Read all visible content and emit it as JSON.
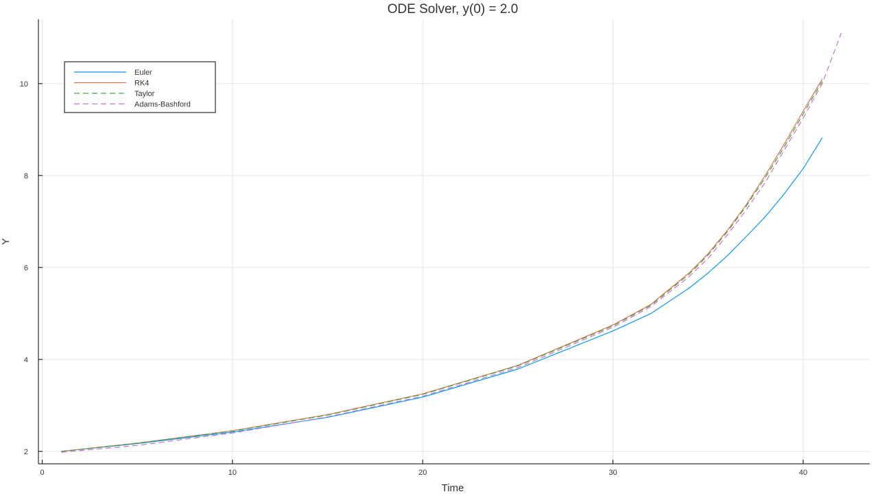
{
  "chart_data": {
    "type": "line",
    "title": "ODE Solver, y(0) = 2.0",
    "xlabel": "Time",
    "ylabel": "Y",
    "xlim": [
      -0.2,
      43.5
    ],
    "ylim": [
      1.73,
      11.4
    ],
    "xticks": [
      0,
      10,
      20,
      30,
      40
    ],
    "yticks": [
      2,
      4,
      6,
      8,
      10
    ],
    "grid": true,
    "legend_position": "top-left",
    "series": [
      {
        "name": "Euler",
        "color": "#009AFA",
        "dash": "solid",
        "x": [
          1,
          5,
          10,
          15,
          20,
          25,
          30,
          32,
          34,
          35,
          36,
          37,
          38,
          39,
          40,
          41
        ],
        "y": [
          2.0,
          2.17,
          2.42,
          2.74,
          3.18,
          3.79,
          4.62,
          5.0,
          5.55,
          5.88,
          6.25,
          6.67,
          7.1,
          7.6,
          8.15,
          8.82
        ]
      },
      {
        "name": "RK4",
        "color": "#E36F47",
        "dash": "solid",
        "x": [
          1,
          5,
          10,
          15,
          20,
          25,
          30,
          32,
          34,
          35,
          36,
          37,
          38,
          39,
          40,
          41
        ],
        "y": [
          2.0,
          2.18,
          2.45,
          2.8,
          3.25,
          3.87,
          4.75,
          5.2,
          5.88,
          6.3,
          6.8,
          7.36,
          8.0,
          8.68,
          9.4,
          10.1
        ]
      },
      {
        "name": "Taylor",
        "color": "#3EA44E",
        "dash": "dash",
        "x": [
          1,
          5,
          10,
          15,
          20,
          25,
          30,
          32,
          34,
          35,
          36,
          37,
          38,
          39,
          40,
          41
        ],
        "y": [
          2.0,
          2.18,
          2.44,
          2.79,
          3.24,
          3.86,
          4.73,
          5.18,
          5.85,
          6.27,
          6.77,
          7.33,
          7.95,
          8.62,
          9.34,
          10.05
        ]
      },
      {
        "name": "Adams-Bashford",
        "color": "#C371D2",
        "dash": "dash",
        "x": [
          1,
          5,
          10,
          15,
          20,
          25,
          30,
          32,
          34,
          35,
          36,
          37,
          38,
          39,
          40,
          41,
          42
        ],
        "y": [
          1.98,
          2.13,
          2.4,
          2.75,
          3.2,
          3.82,
          4.7,
          5.15,
          5.8,
          6.2,
          6.7,
          7.25,
          7.85,
          8.55,
          9.25,
          10.0,
          11.1
        ]
      }
    ]
  }
}
